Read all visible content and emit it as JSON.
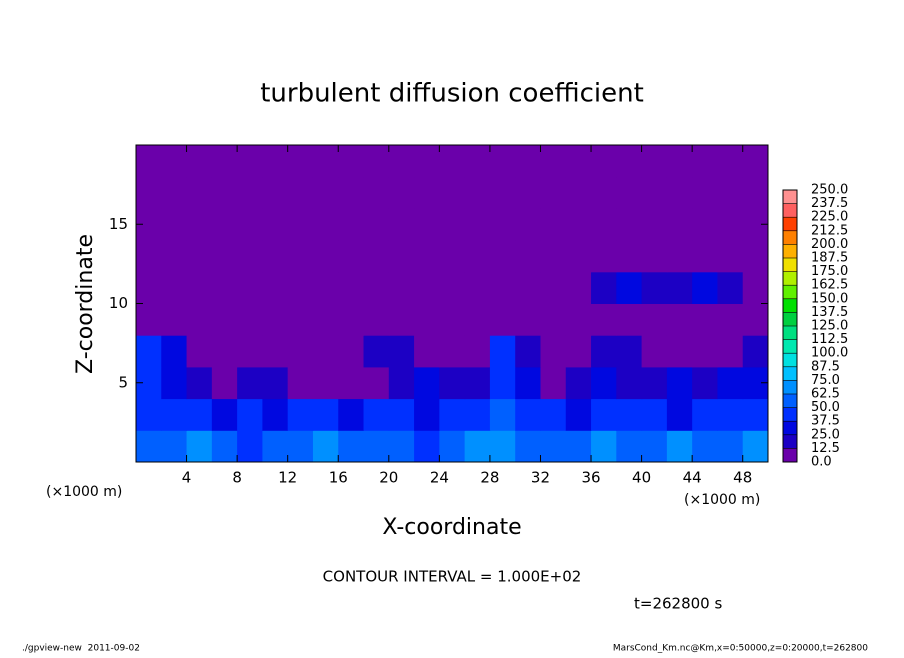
{
  "chart_data": {
    "type": "heatmap",
    "title": "turbulent diffusion coefficient",
    "x_label": "X-coordinate",
    "y_label": "Z-coordinate",
    "x_unit_labels": [
      "(×1000 m)",
      "(×1000 m)"
    ],
    "contour_note": "CONTOUR INTERVAL = 1.000E+02",
    "time_label": "t=262800 s",
    "footer_left": "./gpview-new  2011-09-02",
    "footer_right": "MarsCond_Km.nc@Km,x=0:50000,z=0:20000,t=262800",
    "xlim": [
      0,
      50
    ],
    "ylim": [
      0,
      20
    ],
    "xticks": [
      4,
      8,
      12,
      16,
      20,
      24,
      28,
      32,
      36,
      40,
      44,
      48
    ],
    "yticks": [
      5,
      10,
      15
    ],
    "x": [
      1,
      3,
      5,
      7,
      9,
      11,
      13,
      15,
      17,
      19,
      21,
      23,
      25,
      27,
      29,
      31,
      33,
      35,
      37,
      39,
      41,
      43,
      45,
      47,
      49
    ],
    "y": [
      1,
      3,
      5,
      7,
      9,
      11,
      13,
      15,
      17,
      19
    ],
    "z": [
      [
        50,
        50,
        62.5,
        50,
        37.5,
        50,
        50,
        62.5,
        50,
        50,
        50,
        37.5,
        50,
        62.5,
        62.5,
        50,
        50,
        50,
        62.5,
        50,
        50,
        62.5,
        50,
        50,
        62.5
      ],
      [
        37.5,
        37.5,
        37.5,
        25,
        37.5,
        25,
        37.5,
        37.5,
        25,
        37.5,
        37.5,
        25,
        37.5,
        37.5,
        50,
        37.5,
        37.5,
        25,
        37.5,
        37.5,
        37.5,
        25,
        37.5,
        37.5,
        37.5
      ],
      [
        37.5,
        25,
        12.5,
        0,
        12.5,
        12.5,
        0,
        0,
        0,
        0,
        12.5,
        25,
        12.5,
        12.5,
        37.5,
        25,
        0,
        12.5,
        25,
        12.5,
        12.5,
        25,
        12.5,
        25,
        25
      ],
      [
        37.5,
        25,
        0,
        0,
        0,
        0,
        0,
        0,
        0,
        12.5,
        12.5,
        0,
        0,
        0,
        37.5,
        12.5,
        0,
        0,
        12.5,
        12.5,
        0,
        0,
        0,
        0,
        12.5
      ],
      [
        0,
        0,
        0,
        0,
        0,
        0,
        0,
        0,
        0,
        0,
        0,
        0,
        0,
        0,
        0,
        0,
        0,
        0,
        0,
        0,
        0,
        0,
        0,
        0,
        0
      ],
      [
        0,
        0,
        0,
        0,
        0,
        0,
        0,
        0,
        0,
        0,
        0,
        0,
        0,
        0,
        0,
        0,
        0,
        0,
        12.5,
        25,
        12.5,
        12.5,
        25,
        12.5,
        0
      ],
      [
        0,
        0,
        0,
        0,
        0,
        0,
        0,
        0,
        0,
        0,
        0,
        0,
        0,
        0,
        0,
        0,
        0,
        0,
        0,
        0,
        0,
        0,
        0,
        0,
        0
      ],
      [
        0,
        0,
        0,
        0,
        0,
        0,
        0,
        0,
        0,
        0,
        0,
        0,
        0,
        0,
        0,
        0,
        0,
        0,
        0,
        0,
        0,
        0,
        0,
        0,
        0
      ],
      [
        0,
        0,
        0,
        0,
        0,
        0,
        0,
        0,
        0,
        0,
        0,
        0,
        0,
        0,
        0,
        0,
        0,
        0,
        0,
        0,
        0,
        0,
        0,
        0,
        0
      ],
      [
        0,
        0,
        0,
        0,
        0,
        0,
        0,
        0,
        0,
        0,
        0,
        0,
        0,
        0,
        0,
        0,
        0,
        0,
        0,
        0,
        0,
        0,
        0,
        0,
        0
      ]
    ],
    "colorbar_levels": [
      {
        "value": 0,
        "label": "0.0"
      },
      12.5,
      {
        "value": 25,
        "label": "25.0"
      },
      37.5,
      {
        "value": 50,
        "label": "50.0"
      },
      62.5,
      {
        "value": 75,
        "label": "75.0"
      },
      87.5,
      {
        "value": 100,
        "label": "100.0"
      },
      112.5,
      {
        "value": 125,
        "label": "125.0"
      },
      137.5,
      {
        "value": 150,
        "label": "150.0"
      },
      162.5,
      {
        "value": 175,
        "label": "175.0"
      },
      187.5,
      {
        "value": 200,
        "label": "200.0"
      },
      212.5,
      {
        "value": 225,
        "label": "225.0"
      },
      237.5,
      {
        "value": 250,
        "label": "250.0"
      }
    ],
    "colors": [
      "#6a00aa",
      "#1c00c4",
      "#0008e0",
      "#0030ff",
      "#0060ff",
      "#0090ff",
      "#00c0ff",
      "#00e0e0",
      "#00e8b0",
      "#00e080",
      "#00d040",
      "#00e000",
      "#60f000",
      "#b0f000",
      "#f0e000",
      "#ffb000",
      "#ff8000",
      "#ff4000",
      "#ff6060",
      "#ff9090"
    ]
  }
}
